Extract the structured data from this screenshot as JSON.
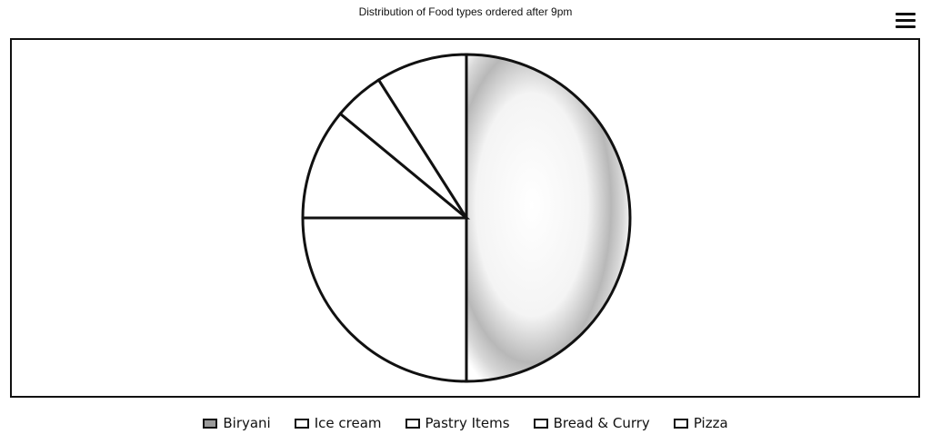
{
  "chart": {
    "title": "Distribution of Food types ordered after 9pm"
  },
  "menu": {
    "icon": "hamburger-menu-icon"
  },
  "chart_data": {
    "type": "pie",
    "title": "Distribution of Food types ordered after 9pm",
    "categories": [
      "Biryani",
      "Ice cream",
      "Pastry Items",
      "Bread & Curry",
      "Pizza"
    ],
    "values": [
      50,
      25,
      11,
      5,
      9
    ],
    "unit": "%",
    "start_angle_deg": 0,
    "direction": "clockwise",
    "legend_position": "bottom",
    "grid": false,
    "colors": [
      "#dcdcdc",
      "#ffffff",
      "#ffffff",
      "#ffffff",
      "#ffffff"
    ],
    "stroke_color": "#111111"
  }
}
